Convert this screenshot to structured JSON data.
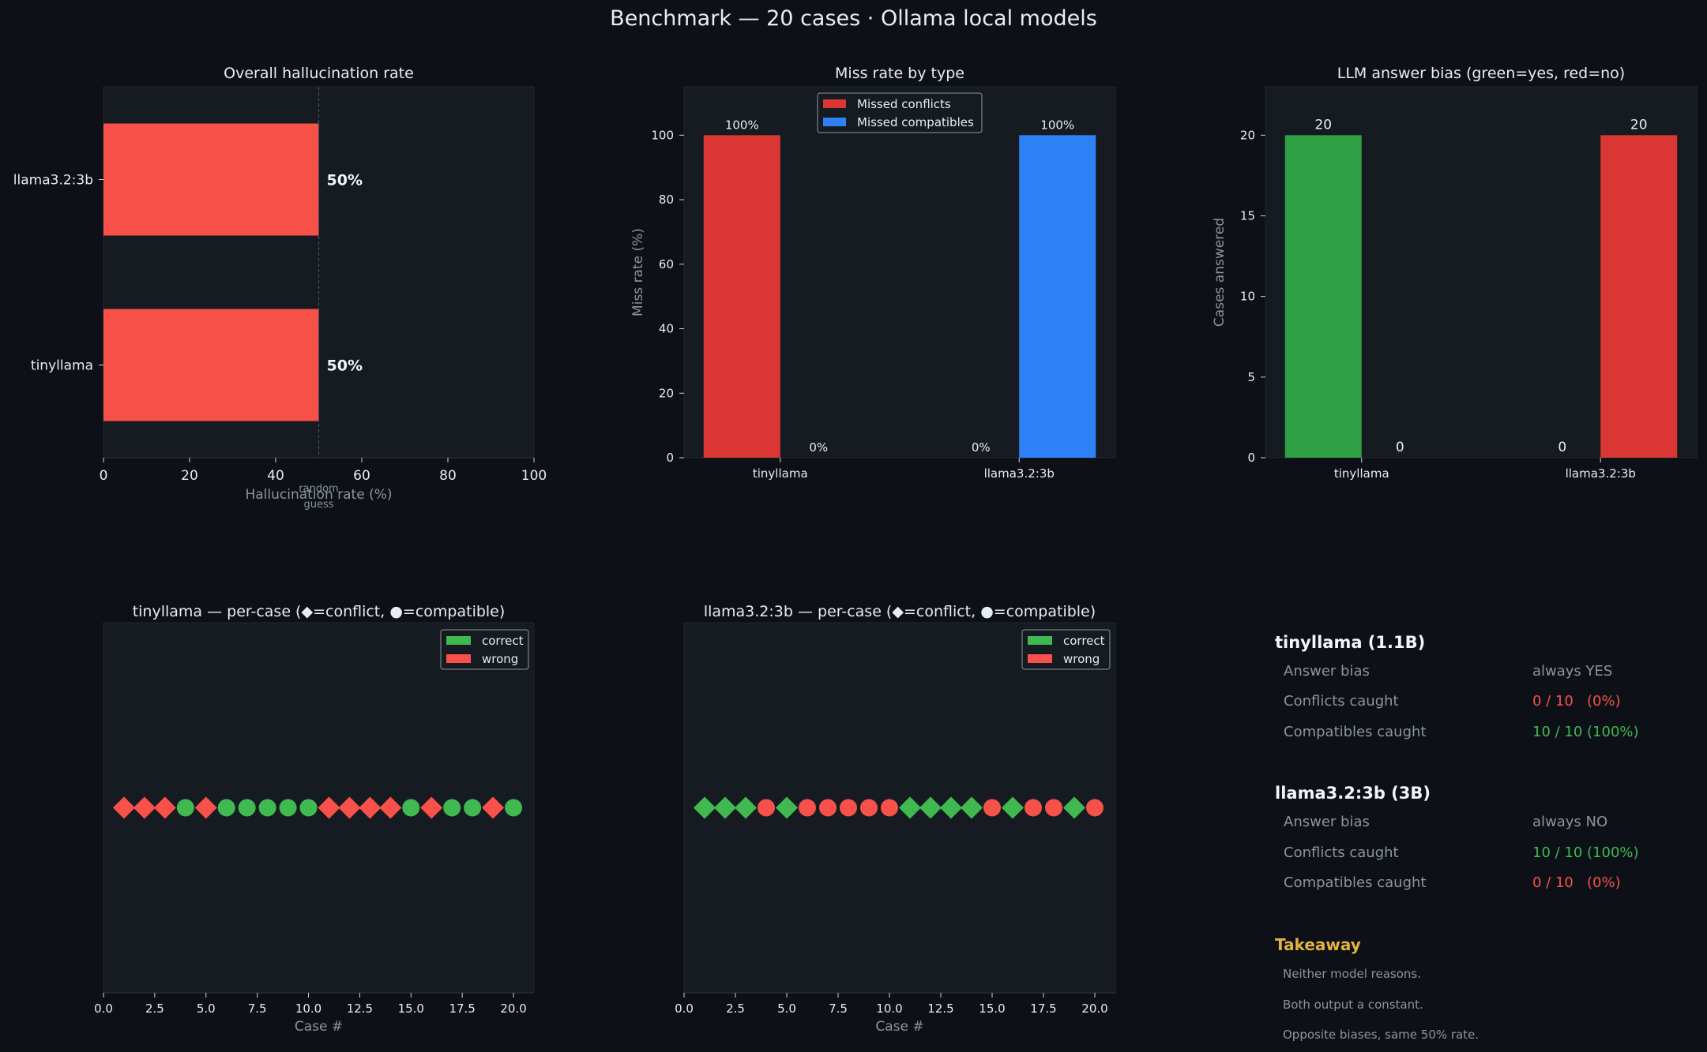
{
  "suptitle": "Benchmark — 20 cases · Ollama local models",
  "colors": {
    "figure_bg": "#0d1117",
    "axes_bg": "#161b22",
    "red": "#f85149",
    "red_dim": "#da3633",
    "green": "#3fb950",
    "green_dim": "#2ea043",
    "blue": "#2f81f7",
    "muted": "#8b949e",
    "amber": "#e3b341"
  },
  "chart_data": [
    {
      "id": "overall",
      "type": "bar",
      "orientation": "horizontal",
      "title": "Overall hallucination rate",
      "xlabel": "Hallucination rate (%)",
      "categories": [
        "tinyllama",
        "llama3.2:3b"
      ],
      "values": [
        50,
        50
      ],
      "value_labels": [
        "50%",
        "50%"
      ],
      "xlim": [
        0,
        100
      ],
      "xticks": [
        0,
        20,
        40,
        60,
        80,
        100
      ],
      "reference_line": {
        "x": 50,
        "label_line1": "random",
        "label_line2": "guess"
      },
      "grid": false
    },
    {
      "id": "miss",
      "type": "bar",
      "title": "Miss rate by type",
      "ylabel": "Miss rate (%)",
      "categories": [
        "tinyllama",
        "llama3.2:3b"
      ],
      "series": [
        {
          "name": "Missed conflicts",
          "values": [
            100,
            0
          ],
          "value_labels": [
            "100%",
            "0%"
          ]
        },
        {
          "name": "Missed compatibles",
          "values": [
            0,
            100
          ],
          "value_labels": [
            "0%",
            "100%"
          ]
        }
      ],
      "ylim": [
        0,
        115
      ],
      "yticks": [
        0,
        20,
        40,
        60,
        80,
        100
      ],
      "legend": "top-center",
      "grid": false
    },
    {
      "id": "bias",
      "type": "bar",
      "title": "LLM answer bias  (green=yes, red=no)",
      "ylabel": "Cases answered",
      "categories": [
        "tinyllama",
        "llama3.2:3b"
      ],
      "series": [
        {
          "answer": "yes",
          "values": [
            20,
            0
          ],
          "value_labels": [
            "20",
            "0"
          ]
        },
        {
          "answer": "no",
          "values": [
            0,
            20
          ],
          "value_labels": [
            "0",
            "20"
          ]
        }
      ],
      "ylim": [
        0,
        23
      ],
      "yticks": [
        0,
        5,
        10,
        15,
        20
      ],
      "grid": false
    },
    {
      "id": "tinyllama-cases",
      "type": "scatter",
      "title": "tinyllama — per-case  (◆=conflict, ●=compatible)",
      "xlabel": "Case #",
      "x": [
        1,
        2,
        3,
        4,
        5,
        6,
        7,
        8,
        9,
        10,
        11,
        12,
        13,
        14,
        15,
        16,
        17,
        18,
        19,
        20
      ],
      "y": [
        0,
        0,
        0,
        0,
        0,
        0,
        0,
        0,
        0,
        0,
        0,
        0,
        0,
        0,
        0,
        0,
        0,
        0,
        0,
        0
      ],
      "case_type": [
        "conflict",
        "conflict",
        "conflict",
        "compatible",
        "conflict",
        "compatible",
        "compatible",
        "compatible",
        "compatible",
        "compatible",
        "conflict",
        "conflict",
        "conflict",
        "conflict",
        "compatible",
        "conflict",
        "compatible",
        "compatible",
        "conflict",
        "compatible"
      ],
      "result": [
        "wrong",
        "wrong",
        "wrong",
        "correct",
        "wrong",
        "correct",
        "correct",
        "correct",
        "correct",
        "correct",
        "wrong",
        "wrong",
        "wrong",
        "wrong",
        "correct",
        "wrong",
        "correct",
        "correct",
        "wrong",
        "correct"
      ],
      "xlim": [
        0,
        21
      ],
      "xticks": [
        0,
        2.5,
        5,
        7.5,
        10,
        12.5,
        15,
        17.5,
        20
      ],
      "xtick_labels": [
        "0.0",
        "2.5",
        "5.0",
        "7.5",
        "10.0",
        "12.5",
        "15.0",
        "17.5",
        "20.0"
      ],
      "legend_entries": [
        "correct",
        "wrong"
      ],
      "legend": "top-right"
    },
    {
      "id": "llama-cases",
      "type": "scatter",
      "title": "llama3.2:3b — per-case  (◆=conflict, ●=compatible)",
      "xlabel": "Case #",
      "x": [
        1,
        2,
        3,
        4,
        5,
        6,
        7,
        8,
        9,
        10,
        11,
        12,
        13,
        14,
        15,
        16,
        17,
        18,
        19,
        20
      ],
      "y": [
        0,
        0,
        0,
        0,
        0,
        0,
        0,
        0,
        0,
        0,
        0,
        0,
        0,
        0,
        0,
        0,
        0,
        0,
        0,
        0
      ],
      "case_type": [
        "conflict",
        "conflict",
        "conflict",
        "compatible",
        "conflict",
        "compatible",
        "compatible",
        "compatible",
        "compatible",
        "compatible",
        "conflict",
        "conflict",
        "conflict",
        "conflict",
        "compatible",
        "conflict",
        "compatible",
        "compatible",
        "conflict",
        "compatible"
      ],
      "result": [
        "correct",
        "correct",
        "correct",
        "wrong",
        "correct",
        "wrong",
        "wrong",
        "wrong",
        "wrong",
        "wrong",
        "correct",
        "correct",
        "correct",
        "correct",
        "wrong",
        "correct",
        "wrong",
        "wrong",
        "correct",
        "wrong"
      ],
      "xlim": [
        0,
        21
      ],
      "xticks": [
        0,
        2.5,
        5,
        7.5,
        10,
        12.5,
        15,
        17.5,
        20
      ],
      "xtick_labels": [
        "0.0",
        "2.5",
        "5.0",
        "7.5",
        "10.0",
        "12.5",
        "15.0",
        "17.5",
        "20.0"
      ],
      "legend_entries": [
        "correct",
        "wrong"
      ],
      "legend": "top-right"
    }
  ],
  "summary": {
    "models": [
      {
        "heading": "tinyllama (1.1B)",
        "rows": [
          {
            "label": "Answer bias",
            "value": "always YES",
            "tone": "muted"
          },
          {
            "label": "Conflicts caught",
            "value": "0 / 10   (0%)",
            "tone": "red"
          },
          {
            "label": "Compatibles caught",
            "value": "10 / 10 (100%)",
            "tone": "green"
          }
        ]
      },
      {
        "heading": "llama3.2:3b (3B)",
        "rows": [
          {
            "label": "Answer bias",
            "value": "always NO",
            "tone": "muted"
          },
          {
            "label": "Conflicts caught",
            "value": "10 / 10 (100%)",
            "tone": "green"
          },
          {
            "label": "Compatibles caught",
            "value": "0 / 10   (0%)",
            "tone": "red"
          }
        ]
      }
    ],
    "takeaway": {
      "heading": "Takeaway",
      "lines": [
        "Neither model reasons.",
        "Both output a constant.",
        "Opposite biases, same 50% rate."
      ]
    }
  }
}
